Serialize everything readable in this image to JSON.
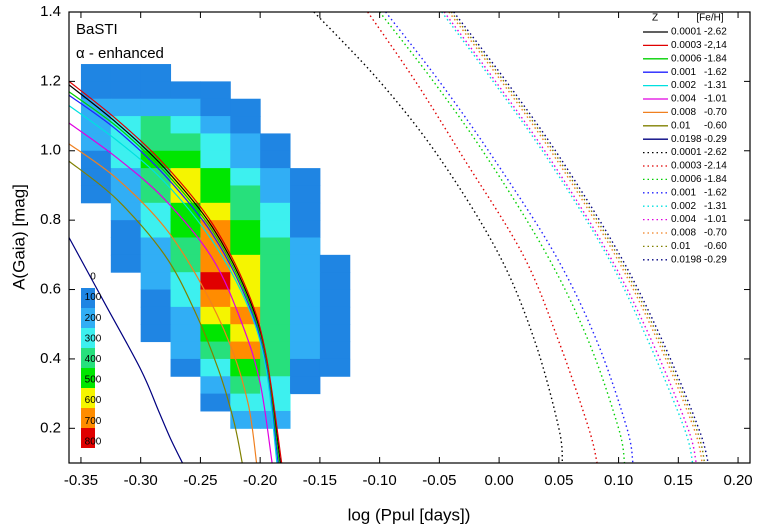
{
  "chart_data": {
    "type": "line",
    "xlabel": "log (Ppul [days])",
    "ylabel": "A(Gaia) [mag]",
    "annotations": [
      "BaSTI",
      "α - enhanced"
    ],
    "legend_headers": [
      "Z",
      "[Fe/H]"
    ],
    "legend": "upper right",
    "xlim": [
      -0.36,
      0.21
    ],
    "ylim": [
      0.1,
      1.4
    ],
    "xticks": [
      -0.35,
      {
        "value": -0.3,
        "label": "-0.30"
      },
      -0.25,
      {
        "value": -0.2,
        "label": "-0.20"
      },
      -0.15,
      {
        "value": -0.1,
        "label": "-0.10"
      },
      -0.05,
      {
        "value": 0,
        "label": "0.00"
      },
      0.05,
      {
        "value": 0.1,
        "label": "0.10"
      },
      0.15,
      {
        "value": 0.2,
        "label": "0.20"
      }
    ],
    "yticks": [
      0.2,
      0.4,
      0.6,
      0.8,
      {
        "value": 1,
        "label": "1.0"
      },
      1.2,
      1.4
    ],
    "heatmap": {
      "levels": [
        0,
        100,
        200,
        300,
        400,
        500,
        600,
        700,
        800
      ],
      "colors": [
        "#1f85e3",
        "#31aef5",
        "#3df0ef",
        "#27e07c",
        "#00e600",
        "#f5f500",
        "#ff8c00",
        "#e00000"
      ],
      "xbins": [
        -0.35,
        -0.325,
        -0.3,
        -0.275,
        -0.25,
        -0.225,
        -0.2,
        -0.175,
        -0.15,
        -0.125
      ],
      "ybins": [
        1.25,
        1.2,
        1.15,
        1.1,
        1.05,
        1.0,
        0.95,
        0.9,
        0.85,
        0.8,
        0.75,
        0.7,
        0.65,
        0.6,
        0.55,
        0.5,
        0.45,
        0.4,
        0.35,
        0.3,
        0.25,
        0.2
      ],
      "z": [
        [
          50,
          50,
          50,
          null,
          null,
          null,
          null,
          null,
          null
        ],
        [
          80,
          80,
          80,
          50,
          50,
          null,
          null,
          null,
          null
        ],
        [
          100,
          150,
          150,
          100,
          50,
          50,
          null,
          null,
          null
        ],
        [
          100,
          200,
          300,
          200,
          100,
          50,
          null,
          null,
          null
        ],
        [
          100,
          200,
          350,
          300,
          200,
          100,
          50,
          null,
          null
        ],
        [
          80,
          200,
          400,
          400,
          250,
          150,
          50,
          null,
          null
        ],
        [
          50,
          150,
          350,
          550,
          400,
          200,
          100,
          50,
          null
        ],
        [
          50,
          100,
          300,
          500,
          450,
          300,
          150,
          50,
          null
        ],
        [
          null,
          100,
          250,
          450,
          550,
          350,
          200,
          50,
          null
        ],
        [
          null,
          80,
          200,
          400,
          650,
          400,
          250,
          80,
          null
        ],
        [
          null,
          50,
          150,
          350,
          600,
          450,
          300,
          100,
          null
        ],
        [
          null,
          50,
          120,
          300,
          650,
          500,
          350,
          120,
          50
        ],
        [
          null,
          null,
          100,
          250,
          720,
          550,
          350,
          150,
          50
        ],
        [
          null,
          null,
          80,
          200,
          600,
          500,
          300,
          150,
          50
        ],
        [
          null,
          null,
          50,
          150,
          500,
          600,
          300,
          150,
          80
        ],
        [
          null,
          null,
          50,
          100,
          400,
          550,
          300,
          120,
          80
        ],
        [
          null,
          null,
          null,
          100,
          300,
          600,
          350,
          100,
          80
        ],
        [
          null,
          null,
          null,
          50,
          200,
          450,
          300,
          80,
          50
        ],
        [
          null,
          null,
          null,
          null,
          100,
          300,
          250,
          50,
          null
        ],
        [
          null,
          null,
          null,
          null,
          50,
          200,
          200,
          null,
          null
        ],
        [
          null,
          null,
          null,
          null,
          null,
          100,
          100,
          null,
          null
        ]
      ]
    },
    "series": [
      {
        "name": "0.0001",
        "feh": "-2.62",
        "color": "#000000",
        "style": "solid",
        "x": [
          -0.36,
          -0.32,
          -0.28,
          -0.24,
          -0.21,
          -0.195,
          -0.183
        ],
        "values": [
          1.19,
          1.08,
          0.95,
          0.78,
          0.58,
          0.4,
          0.1
        ]
      },
      {
        "name": "0.0003",
        "feh": "-2,14",
        "color": "#e00000",
        "style": "solid",
        "x": [
          -0.36,
          -0.32,
          -0.28,
          -0.24,
          -0.21,
          -0.195,
          -0.182
        ],
        "values": [
          1.2,
          1.09,
          0.96,
          0.79,
          0.59,
          0.41,
          0.1
        ]
      },
      {
        "name": "0.0006",
        "feh": "-1.84",
        "color": "#00d000",
        "style": "solid",
        "x": [
          -0.36,
          -0.32,
          -0.28,
          -0.24,
          -0.21,
          -0.195,
          -0.184
        ],
        "values": [
          1.17,
          1.07,
          0.94,
          0.77,
          0.57,
          0.39,
          0.1
        ]
      },
      {
        "name": "0.001",
        "feh": "-1.62",
        "color": "#2020ff",
        "style": "solid",
        "x": [
          -0.36,
          -0.32,
          -0.28,
          -0.24,
          -0.21,
          -0.195,
          -0.185
        ],
        "values": [
          1.16,
          1.06,
          0.93,
          0.76,
          0.56,
          0.38,
          0.1
        ]
      },
      {
        "name": "0.002",
        "feh": "-1.31",
        "color": "#00e0e0",
        "style": "solid",
        "x": [
          -0.36,
          -0.32,
          -0.28,
          -0.24,
          -0.21,
          -0.195,
          -0.186
        ],
        "values": [
          1.13,
          1.03,
          0.91,
          0.74,
          0.55,
          0.37,
          0.1
        ]
      },
      {
        "name": "0.004",
        "feh": "-1.01",
        "color": "#e000e0",
        "style": "solid",
        "x": [
          -0.36,
          -0.32,
          -0.28,
          -0.24,
          -0.215,
          -0.2,
          -0.19
        ],
        "values": [
          1.08,
          0.98,
          0.86,
          0.69,
          0.5,
          0.33,
          0.1
        ]
      },
      {
        "name": "0.008",
        "feh": "-0.70",
        "color": "#f08020",
        "style": "solid",
        "x": [
          -0.36,
          -0.32,
          -0.28,
          -0.25,
          -0.225,
          -0.21,
          -0.203
        ],
        "values": [
          1.02,
          0.92,
          0.78,
          0.62,
          0.44,
          0.27,
          0.1
        ]
      },
      {
        "name": "0.01",
        "feh": "-0.60",
        "color": "#808000",
        "style": "solid",
        "x": [
          -0.36,
          -0.32,
          -0.28,
          -0.255,
          -0.235,
          -0.222,
          -0.215
        ],
        "values": [
          0.97,
          0.86,
          0.7,
          0.54,
          0.37,
          0.22,
          0.1
        ]
      },
      {
        "name": "0.0198",
        "feh": "-0.29",
        "color": "#000080",
        "style": "solid",
        "x": [
          -0.36,
          -0.33,
          -0.3,
          -0.285,
          -0.275,
          -0.265
        ],
        "values": [
          0.75,
          0.56,
          0.37,
          0.25,
          0.17,
          0.1
        ]
      },
      {
        "name": "0.0001",
        "feh": "-2.62",
        "color": "#000000",
        "style": "dotted",
        "x": [
          -0.155,
          -0.1,
          -0.05,
          0.0,
          0.03,
          0.05,
          0.053
        ],
        "values": [
          1.4,
          1.2,
          0.98,
          0.7,
          0.45,
          0.2,
          0.1
        ]
      },
      {
        "name": "0.0003",
        "feh": "-2.14",
        "color": "#e00000",
        "style": "dotted",
        "x": [
          -0.11,
          -0.07,
          -0.03,
          0.02,
          0.05,
          0.075,
          0.082
        ],
        "values": [
          1.4,
          1.2,
          0.98,
          0.7,
          0.45,
          0.2,
          0.1
        ]
      },
      {
        "name": "0.0006",
        "feh": "-1.84",
        "color": "#00d000",
        "style": "dotted",
        "x": [
          -0.1,
          -0.055,
          -0.01,
          0.04,
          0.075,
          0.1,
          0.105
        ],
        "values": [
          1.4,
          1.2,
          0.98,
          0.7,
          0.45,
          0.2,
          0.1
        ]
      },
      {
        "name": "0.001",
        "feh": "-1.62",
        "color": "#2020ff",
        "style": "dotted",
        "x": [
          -0.095,
          -0.05,
          -0.005,
          0.047,
          0.082,
          0.107,
          0.112
        ],
        "values": [
          1.4,
          1.2,
          0.98,
          0.7,
          0.45,
          0.2,
          0.1
        ]
      },
      {
        "name": "0.002",
        "feh": "-1.31",
        "color": "#00e0e0",
        "style": "dotted",
        "x": [
          -0.048,
          -0.005,
          0.04,
          0.09,
          0.125,
          0.155,
          0.162
        ],
        "values": [
          1.4,
          1.2,
          0.98,
          0.7,
          0.45,
          0.2,
          0.1
        ]
      },
      {
        "name": "0.004",
        "feh": "-1.01",
        "color": "#e000e0",
        "style": "dotted",
        "x": [
          -0.046,
          -0.003,
          0.042,
          0.092,
          0.128,
          0.158,
          0.165
        ],
        "values": [
          1.4,
          1.2,
          0.98,
          0.7,
          0.45,
          0.2,
          0.1
        ]
      },
      {
        "name": "0.008",
        "feh": "-0.70",
        "color": "#f08020",
        "style": "dotted",
        "x": [
          -0.042,
          0.002,
          0.047,
          0.097,
          0.133,
          0.163,
          0.17
        ],
        "values": [
          1.4,
          1.2,
          0.98,
          0.7,
          0.45,
          0.2,
          0.1
        ]
      },
      {
        "name": "0.01",
        "feh": "-0.60",
        "color": "#808000",
        "style": "dotted",
        "x": [
          -0.04,
          0.004,
          0.049,
          0.099,
          0.135,
          0.165,
          0.172
        ],
        "values": [
          1.4,
          1.2,
          0.98,
          0.7,
          0.45,
          0.2,
          0.1
        ]
      },
      {
        "name": "0.0198",
        "feh": "-0.29",
        "color": "#000080",
        "style": "dotted",
        "x": [
          -0.038,
          0.006,
          0.051,
          0.101,
          0.137,
          0.167,
          0.175
        ],
        "values": [
          1.4,
          1.2,
          0.98,
          0.7,
          0.45,
          0.2,
          0.1
        ]
      }
    ]
  }
}
